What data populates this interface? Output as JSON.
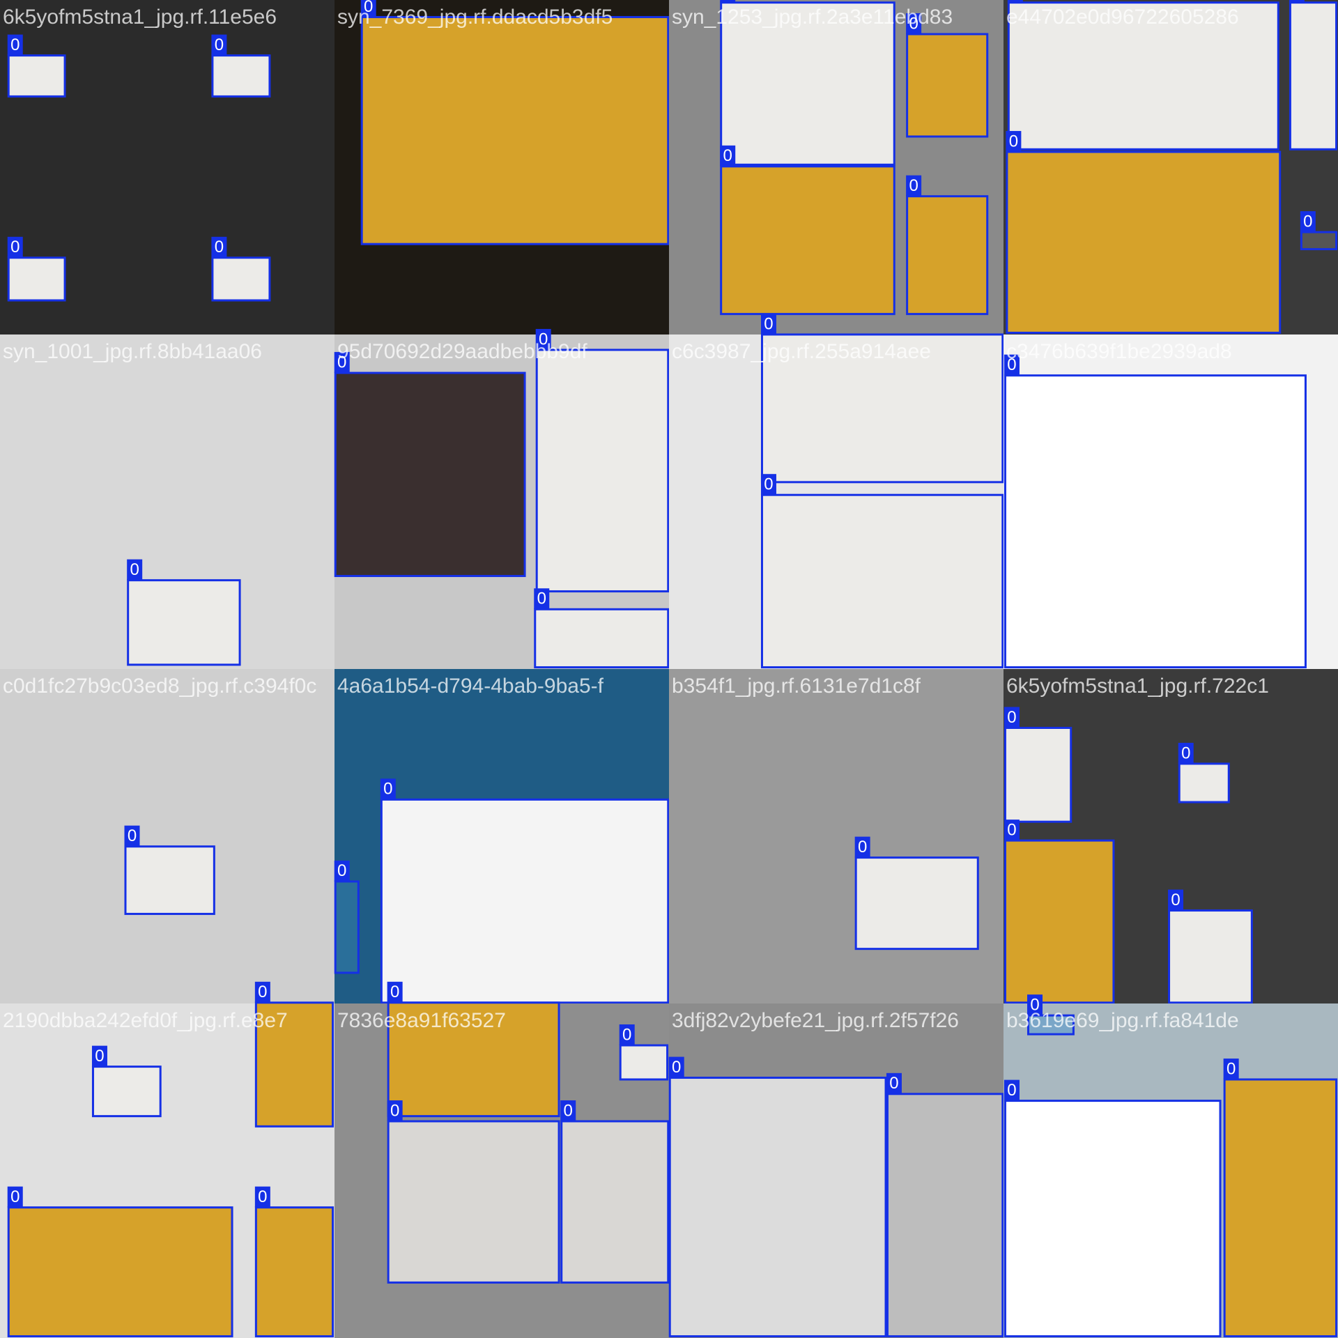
{
  "tiles": [
    {
      "filename": "6k5yofm5stna1_jpg.rf.11e5e6",
      "labels": [
        "0",
        "0",
        "0",
        "0"
      ]
    },
    {
      "filename": "syn_7369_jpg.rf.ddacd5b3df5",
      "labels": [
        "0"
      ]
    },
    {
      "filename": "syn_1253_jpg.rf.2a3e11ebd83",
      "labels": [
        "0",
        "0",
        "0",
        "0"
      ]
    },
    {
      "filename": "e44702e0d96722605286",
      "labels": [
        "0",
        "0",
        "0",
        "0"
      ]
    },
    {
      "filename": "syn_1001_jpg.rf.8bb41aa06",
      "labels": [
        "0"
      ]
    },
    {
      "filename": "95d70692d29aadbebbb9df",
      "labels": [
        "0",
        "0",
        "0"
      ]
    },
    {
      "filename": "c6c3987_jpg.rf.255a914aee",
      "labels": [
        "0",
        "0"
      ]
    },
    {
      "filename": "c3476b639f1be2939ad8",
      "labels": [
        "0"
      ]
    },
    {
      "filename": "c0d1fc27b9c03ed8_jpg.rf.c394f0c",
      "labels": [
        "0"
      ]
    },
    {
      "filename": "4a6a1b54-d794-4bab-9ba5-f",
      "labels": [
        "0",
        "0"
      ]
    },
    {
      "filename": "b354f1_jpg.rf.6131e7d1c8f",
      "labels": [
        "0"
      ]
    },
    {
      "filename": "6k5yofm5stna1_jpg.rf.722c1",
      "labels": [
        "0",
        "0",
        "0",
        "0"
      ]
    },
    {
      "filename": "2190dbba242efd0f_jpg.rf.e8e7",
      "labels": [
        "0",
        "0",
        "0",
        "0"
      ]
    },
    {
      "filename": "7836e8a91f63527",
      "labels": [
        "0",
        "0",
        "0",
        "0"
      ]
    },
    {
      "filename": "3dfj82v2ybefe21_jpg.rf.2f57f26",
      "labels": [
        "0",
        "0"
      ]
    },
    {
      "filename": "b3619e69_jpg.rf.fa841de",
      "labels": [
        "0",
        "0",
        "0"
      ]
    }
  ]
}
